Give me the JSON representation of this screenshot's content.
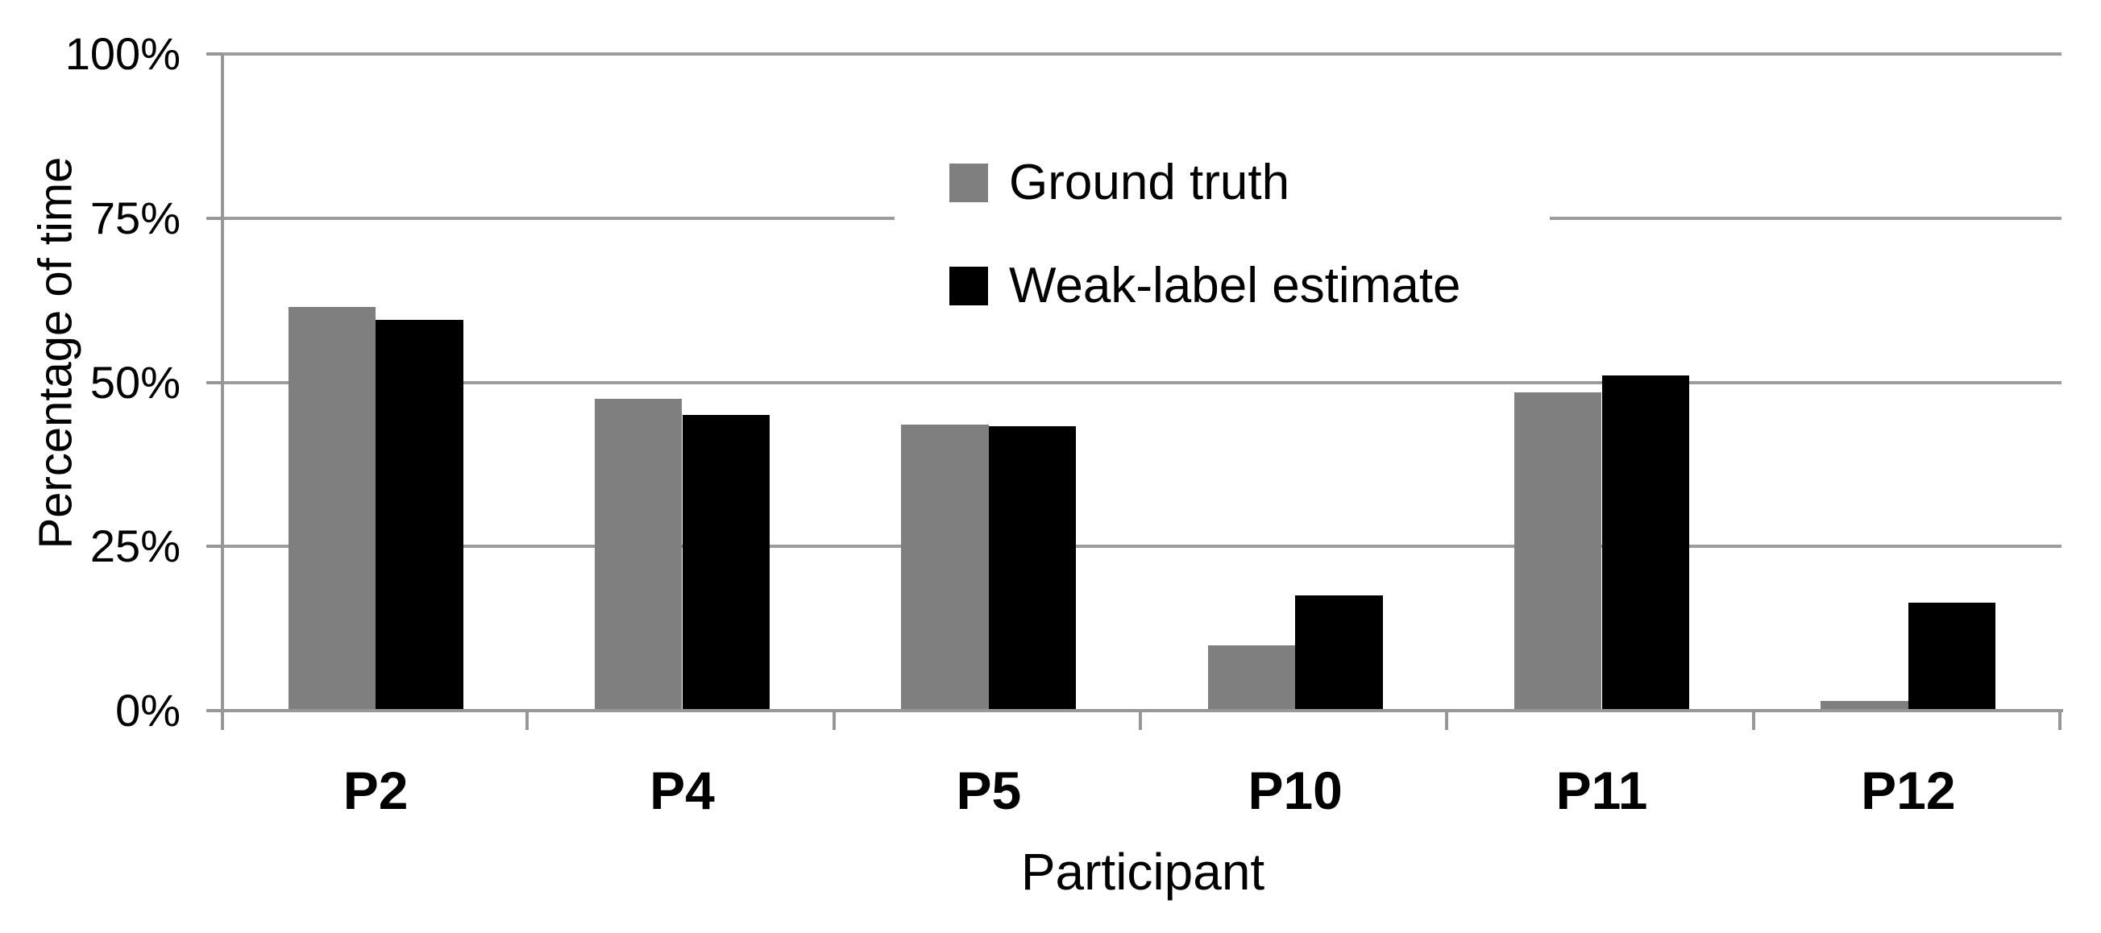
{
  "chart_data": {
    "type": "bar",
    "title": "",
    "categories": [
      "P2",
      "P4",
      "P5",
      "P10",
      "P11",
      "P12"
    ],
    "series": [
      {
        "name": "Ground truth",
        "color": "#7f7f7f",
        "values": [
          61.5,
          47.5,
          43.5,
          10.0,
          48.5,
          1.5
        ]
      },
      {
        "name": "Weak-label estimate",
        "color": "#000000",
        "values": [
          59.5,
          45.0,
          43.3,
          17.5,
          51.0,
          16.5
        ]
      }
    ],
    "xlabel": "Participant",
    "ylabel": "Percentage of time",
    "ylim": [
      0,
      100
    ],
    "yticks": [
      "0%",
      "25%",
      "50%",
      "75%",
      "100%"
    ],
    "ytick_values": [
      0,
      25,
      50,
      75,
      100
    ],
    "grid": true,
    "legend_position": "top-center-inside",
    "axis_color": "#979797",
    "gridline_color": "#9d9d9d",
    "text_color": "#000000",
    "background_color": "#ffffff"
  }
}
